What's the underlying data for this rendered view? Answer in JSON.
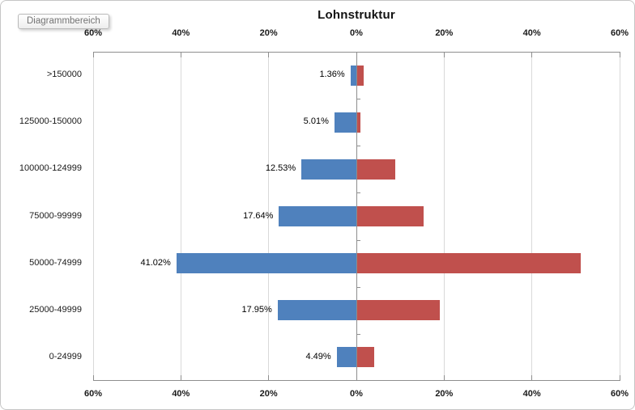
{
  "tooltip": {
    "label": "Diagrammbereich"
  },
  "chart_data": {
    "type": "bar",
    "orientation": "horizontal-pyramid",
    "title": "Lohnstruktur",
    "categories": [
      ">150000",
      "125000-150000",
      "100000-124999",
      "75000-99999",
      "50000-74999",
      "25000-49999",
      "0-24999"
    ],
    "series": [
      {
        "name": "",
        "side": "left",
        "color": "#4F81BD",
        "values": [
          1.36,
          5.01,
          12.53,
          17.64,
          41.02,
          17.95,
          4.49
        ],
        "data_labels": [
          "1.36%",
          "5.01%",
          "12.53%",
          "17.64%",
          "41.02%",
          "17.95%",
          "4.49%"
        ]
      },
      {
        "name": "",
        "side": "right",
        "color": "#C0504D",
        "values": [
          1.5,
          0.9,
          8.8,
          15.2,
          51.0,
          19.0,
          3.9
        ],
        "data_labels": []
      }
    ],
    "x_axis": {
      "position": "top-and-bottom",
      "tick_labels": [
        "60%",
        "40%",
        "20%",
        "0%",
        "20%",
        "40%",
        "60%"
      ],
      "tick_values": [
        -60,
        -40,
        -20,
        0,
        20,
        40,
        60
      ],
      "xlim": [
        -60,
        60
      ]
    },
    "grid": true,
    "legend": false,
    "colors": {
      "gridline": "#D9D9D9",
      "axis": "#8E8E8E",
      "text": "#1A1A1A",
      "series_left": "#4F81BD",
      "series_right": "#C0504D"
    }
  }
}
